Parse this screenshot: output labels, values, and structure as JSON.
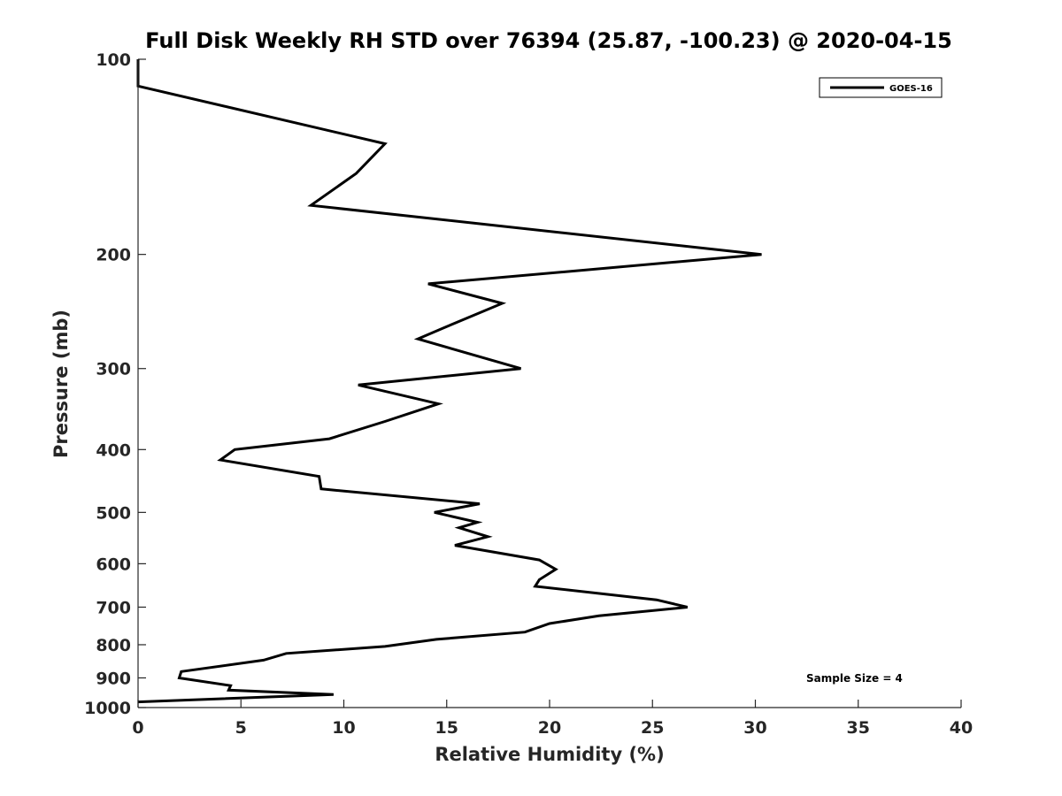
{
  "chart_data": {
    "type": "line",
    "title": "Full Disk Weekly RH STD over 76394 (25.87, -100.23) @ 2020-04-15",
    "xlabel": "Relative Humidity (%)",
    "ylabel": "Pressure (mb)",
    "xlim": [
      0,
      40
    ],
    "ylim": [
      100,
      1000
    ],
    "y_scale": "log",
    "y_reversed": true,
    "x_ticks": [
      0,
      5,
      10,
      15,
      20,
      25,
      30,
      35,
      40
    ],
    "y_ticks": [
      100,
      200,
      300,
      400,
      500,
      600,
      700,
      800,
      900,
      1000
    ],
    "grid": false,
    "legend_position": "top-right",
    "annotation": "Sample Size = 4",
    "series": [
      {
        "name": "GOES-16",
        "color": "#000000",
        "x": [
          0,
          0,
          12.0,
          10.6,
          8.4,
          30.3,
          14.1,
          17.7,
          14.8,
          13.6,
          18.6,
          10.7,
          14.6,
          12.0,
          9.3,
          4.7,
          4.0,
          8.8,
          8.9,
          16.6,
          14.4,
          16.5,
          15.6,
          17.0,
          15.4,
          19.5,
          20.3,
          19.5,
          19.3,
          25.2,
          26.7,
          22.4,
          20.0,
          18.8,
          14.5,
          12.0,
          7.2,
          6.1,
          2.1,
          2.0,
          4.5,
          4.4,
          9.5,
          0
        ],
        "y": [
          100,
          110,
          135,
          150,
          168,
          200,
          222,
          238,
          260,
          270,
          300,
          318,
          340,
          362,
          385,
          400,
          415,
          440,
          460,
          485,
          500,
          518,
          528,
          545,
          562,
          592,
          612,
          635,
          650,
          682,
          700,
          722,
          742,
          765,
          785,
          805,
          825,
          845,
          880,
          900,
          925,
          940,
          955,
          980
        ]
      }
    ]
  }
}
